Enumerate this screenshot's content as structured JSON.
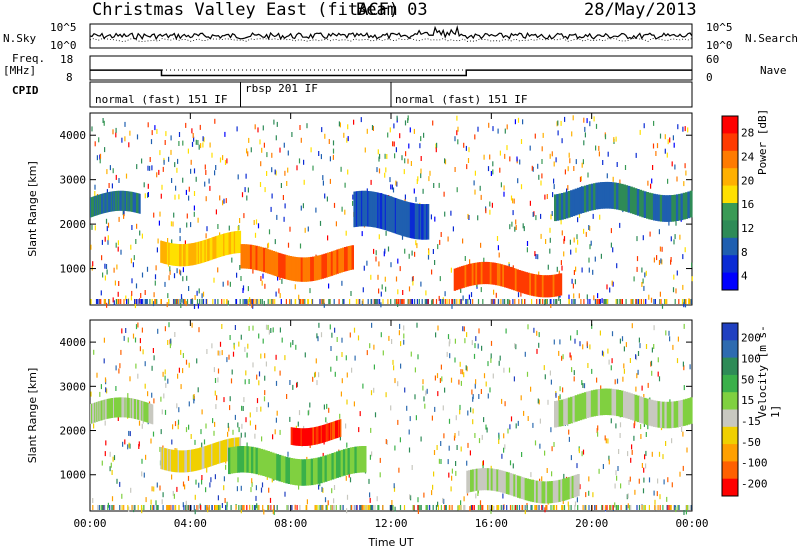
{
  "header": {
    "title": "Christmas Valley East (fitACF)",
    "beam": "Beam 03",
    "date": "28/May/2013"
  },
  "left_labels": {
    "nsky": "N.Sky",
    "freq": "Freq.",
    "freq_unit": "[MHz]",
    "cpid": "CPID"
  },
  "right_labels": {
    "nsearch": "N.Search",
    "nave": "Nave"
  },
  "noise_panel": {
    "left_ticks": [
      "10^5",
      "10^0"
    ],
    "right_ticks": [
      "10^5",
      "10^0"
    ]
  },
  "freq_panel": {
    "left_ticks": [
      "18",
      "8"
    ],
    "right_ticks": [
      "60",
      "0"
    ]
  },
  "cpid_panel": {
    "segments": [
      {
        "label": "normal (fast) 151 IF",
        "start": 0,
        "end": 6
      },
      {
        "label": "rbsp 201 IF",
        "start": 6,
        "end": 12
      },
      {
        "label": "normal (fast) 151 IF",
        "start": 12,
        "end": 24
      }
    ]
  },
  "colorbar_power": {
    "label": "Power [dB]",
    "ticks": [
      "28",
      "24",
      "20",
      "16",
      "12",
      "8",
      "4"
    ],
    "colors": [
      "#ff0000",
      "#ff3a00",
      "#ff7b00",
      "#ffb000",
      "#ffe000",
      "#3a9a55",
      "#2e8b57",
      "#1f5fb0",
      "#0a2bd4",
      "#0000ff"
    ]
  },
  "colorbar_velocity": {
    "label": "Velocity [m s-1]",
    "ticks": [
      "200",
      "100",
      "50",
      "15",
      "-15",
      "-50",
      "-100",
      "-200"
    ],
    "colors": [
      "#2040c0",
      "#2e6bb0",
      "#2e8b57",
      "#3ab04a",
      "#80d040",
      "#c8c8c0",
      "#f0d000",
      "#ffa000",
      "#ff6000",
      "#ff0000"
    ]
  },
  "xaxis": {
    "label": "Time UT",
    "ticks": [
      "00:00",
      "04:00",
      "08:00",
      "12:00",
      "16:00",
      "20:00",
      "00:00"
    ]
  },
  "chart_data": {
    "type": "heatmap",
    "title": "Christmas Valley East (fitACF)",
    "xlabel": "Time UT",
    "ylabel": "Slant Range [km]",
    "xlim": [
      0,
      24
    ],
    "ylim": [
      180,
      4500
    ],
    "yticks": [
      1000,
      2000,
      3000,
      4000
    ],
    "panels": [
      {
        "name": "Power",
        "colorbar_label": "Power [dB]",
        "range": [
          0,
          30
        ],
        "bands": [
          {
            "t0": 0.0,
            "t1": 2.0,
            "r0": 2150,
            "r1": 2600,
            "v": 8
          },
          {
            "t0": 2.8,
            "t1": 6.0,
            "r0": 1200,
            "r1": 1700,
            "v": 18
          },
          {
            "t0": 6.0,
            "t1": 10.5,
            "r0": 850,
            "r1": 1400,
            "v": 24
          },
          {
            "t0": 10.5,
            "t1": 13.5,
            "r0": 1800,
            "r1": 2600,
            "v": 6
          },
          {
            "t0": 14.5,
            "t1": 18.8,
            "r0": 500,
            "r1": 1000,
            "v": 26
          },
          {
            "t0": 18.5,
            "t1": 24.0,
            "r0": 2200,
            "r1": 2800,
            "v": 8
          }
        ]
      },
      {
        "name": "Velocity",
        "colorbar_label": "Velocity [m s-1]",
        "range": [
          -200,
          200
        ],
        "bands": [
          {
            "t0": 0.0,
            "t1": 2.5,
            "r0": 2150,
            "r1": 2600,
            "v": 0
          },
          {
            "t0": 2.8,
            "t1": 6.0,
            "r0": 1200,
            "r1": 1700,
            "v": -60
          },
          {
            "t0": 5.5,
            "t1": 11.0,
            "r0": 900,
            "r1": 1500,
            "v": 30
          },
          {
            "t0": 8.0,
            "t1": 10.0,
            "r0": 1800,
            "r1": 2200,
            "v": -190
          },
          {
            "t0": 15.0,
            "t1": 19.5,
            "r0": 500,
            "r1": 1000,
            "v": 0
          },
          {
            "t0": 18.5,
            "t1": 24.0,
            "r0": 2200,
            "r1": 2800,
            "v": 0
          }
        ]
      }
    ]
  }
}
